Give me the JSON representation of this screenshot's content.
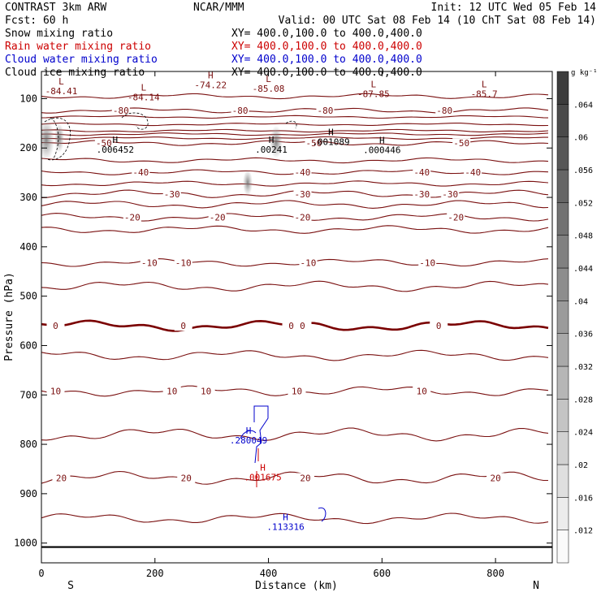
{
  "header": {
    "title_left": "CONTRAST  3km ARW",
    "title_center": "NCAR/MMM",
    "init": "Init: 12 UTC Wed 05 Feb 14",
    "fcst": "Fcst:    60 h",
    "valid": "Valid: 00 UTC Sat 08 Feb 14 (10 ChT Sat 08 Feb 14)"
  },
  "legend": [
    {
      "label": "Snow mixing ratio",
      "xy": "XY= 400.0,100.0 to 400.0,400.0",
      "color": "#000000"
    },
    {
      "label": "Rain water mixing ratio",
      "xy": "XY= 400.0,100.0 to 400.0,400.0",
      "color": "#cc0000"
    },
    {
      "label": "Cloud water mixing ratio",
      "xy": "XY= 400.0,100.0 to 400.0,400.0",
      "color": "#0000cc"
    },
    {
      "label": "Cloud ice mixing ratio",
      "xy": "XY= 400.0,100.0 to 400.0,400.0",
      "color": "#000000"
    }
  ],
  "colors": {
    "contour": "#7a1010",
    "zero_line": "#7a0000",
    "cloud_water": "#0000cc",
    "rain": "#cc0000",
    "ground": "#000000"
  },
  "chart_data": {
    "type": "cross-section",
    "xlabel": "Distance (km)",
    "ylabel": "Pressure (hPa)",
    "xlim": [
      0,
      900
    ],
    "ylim": [
      1040,
      45
    ],
    "x_ticks": [
      0,
      200,
      400,
      600,
      800
    ],
    "y_ticks": [
      100,
      200,
      300,
      400,
      500,
      600,
      700,
      800,
      900,
      1000
    ],
    "left_end_label": "S",
    "right_end_label": "N",
    "colorbar": {
      "units": "g kg⁻¹",
      "levels": [
        ".012",
        ".016",
        ".02",
        ".024",
        ".028",
        ".032",
        ".036",
        ".04",
        ".044",
        ".048",
        ".052",
        ".056",
        ".06",
        ".064"
      ]
    },
    "temperature_contours": [
      {
        "value": -85,
        "p": 95,
        "wave": 2,
        "labels": []
      },
      {
        "value": -80,
        "p": 124,
        "wave": 2,
        "labels": [
          {
            "x": 140,
            "t": "-80"
          },
          {
            "x": 350,
            "t": "-80"
          },
          {
            "x": 500,
            "t": "-80"
          },
          {
            "x": 710,
            "t": "-80"
          }
        ]
      },
      {
        "value": -75,
        "p": 137,
        "wave": 1,
        "labels": []
      },
      {
        "value": -70,
        "p": 152,
        "wave": 1,
        "labels": []
      },
      {
        "value": -65,
        "p": 165,
        "wave": 1,
        "labels": []
      },
      {
        "value": -60,
        "p": 172,
        "wave": 1,
        "labels": []
      },
      {
        "value": -55,
        "p": 180,
        "wave": 1,
        "labels": []
      },
      {
        "value": -50,
        "p": 190,
        "wave": 2,
        "labels": [
          {
            "x": 110,
            "t": "-50"
          },
          {
            "x": 480,
            "t": "-50"
          },
          {
            "x": 740,
            "t": "-50"
          }
        ]
      },
      {
        "value": -45,
        "p": 225,
        "wave": 2,
        "labels": []
      },
      {
        "value": -40,
        "p": 249,
        "wave": 2,
        "labels": [
          {
            "x": 175,
            "t": "-40"
          },
          {
            "x": 460,
            "t": "-40"
          },
          {
            "x": 670,
            "t": "-40"
          },
          {
            "x": 760,
            "t": "-40"
          }
        ]
      },
      {
        "value": -35,
        "p": 272,
        "wave": 2,
        "labels": []
      },
      {
        "value": -30,
        "p": 293,
        "wave": 3,
        "labels": [
          {
            "x": 230,
            "t": "-30"
          },
          {
            "x": 460,
            "t": "-30"
          },
          {
            "x": 670,
            "t": "-30"
          },
          {
            "x": 720,
            "t": "-30"
          }
        ]
      },
      {
        "value": -25,
        "p": 314,
        "wave": 3,
        "labels": []
      },
      {
        "value": -20,
        "p": 340,
        "wave": 3,
        "labels": [
          {
            "x": 160,
            "t": "-20"
          },
          {
            "x": 310,
            "t": "-20"
          },
          {
            "x": 460,
            "t": "-20"
          },
          {
            "x": 730,
            "t": "-20"
          }
        ]
      },
      {
        "value": -15,
        "p": 365,
        "wave": 3,
        "labels": []
      },
      {
        "value": -10,
        "p": 432,
        "wave": 3,
        "labels": [
          {
            "x": 190,
            "t": "-10"
          },
          {
            "x": 250,
            "t": "-10"
          },
          {
            "x": 470,
            "t": "-10"
          },
          {
            "x": 680,
            "t": "-10"
          }
        ]
      },
      {
        "value": -5,
        "p": 480,
        "wave": 4,
        "labels": []
      },
      {
        "value": 0,
        "p": 560,
        "wave": 4,
        "thick": true,
        "labels": [
          {
            "x": 25,
            "t": "0"
          },
          {
            "x": 250,
            "t": "0"
          },
          {
            "x": 440,
            "t": "0"
          },
          {
            "x": 460,
            "t": "0"
          },
          {
            "x": 700,
            "t": "0"
          }
        ]
      },
      {
        "value": 5,
        "p": 620,
        "wave": 4,
        "labels": []
      },
      {
        "value": 10,
        "p": 692,
        "wave": 4,
        "labels": [
          {
            "x": 25,
            "t": "10"
          },
          {
            "x": 230,
            "t": "10"
          },
          {
            "x": 290,
            "t": "10"
          },
          {
            "x": 450,
            "t": "10"
          },
          {
            "x": 670,
            "t": "10"
          }
        ]
      },
      {
        "value": 15,
        "p": 780,
        "wave": 5,
        "labels": []
      },
      {
        "value": 20,
        "p": 868,
        "wave": 5,
        "labels": [
          {
            "x": 35,
            "t": "20"
          },
          {
            "x": 255,
            "t": "20"
          },
          {
            "x": 465,
            "t": "20"
          },
          {
            "x": 800,
            "t": "20"
          }
        ]
      },
      {
        "value": 25,
        "p": 950,
        "wave": 4,
        "labels": []
      }
    ],
    "ground_pressure": 1008,
    "extrema": [
      {
        "x": 35,
        "p": 75,
        "mark": "L",
        "value": "-84.41",
        "color": "#7a1010"
      },
      {
        "x": 180,
        "p": 87,
        "mark": "L",
        "value": "-84.14",
        "color": "#7a1010"
      },
      {
        "x": 298,
        "p": 62,
        "mark": "H",
        "value": "-74.22",
        "color": "#7a1010"
      },
      {
        "x": 400,
        "p": 70,
        "mark": "L",
        "value": "-85.08",
        "color": "#7a1010"
      },
      {
        "x": 585,
        "p": 80,
        "mark": "L",
        "value": "-87.85",
        "color": "#7a1010"
      },
      {
        "x": 780,
        "p": 80,
        "mark": "L",
        "value": "-85.7",
        "color": "#7a1010"
      },
      {
        "x": 130,
        "p": 193,
        "mark": "H",
        "value": ".006452",
        "color": "#000000"
      },
      {
        "x": 405,
        "p": 193,
        "mark": "H",
        "value": ".00241",
        "color": "#000000"
      },
      {
        "x": 510,
        "p": 177,
        "mark": "H",
        "value": ".001089",
        "color": "#000000"
      },
      {
        "x": 600,
        "p": 194,
        "mark": "H",
        "value": ".000446",
        "color": "#000000"
      },
      {
        "x": 365,
        "p": 782,
        "mark": "H",
        "value": ".280049",
        "color": "#0000cc"
      },
      {
        "x": 390,
        "p": 857,
        "mark": "H",
        "value": ".001675",
        "color": "#cc0000"
      },
      {
        "x": 430,
        "p": 957,
        "mark": "H",
        "value": ".113316",
        "color": "#0000cc"
      }
    ]
  }
}
